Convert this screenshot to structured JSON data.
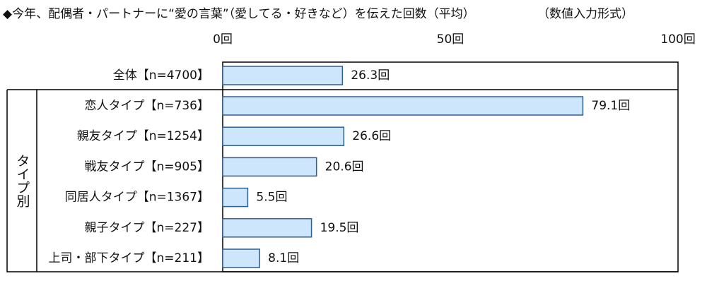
{
  "chart_data": {
    "type": "bar",
    "orientation": "horizontal",
    "title": "◆今年、配偶者・パートナーに“愛の言葉”（愛してる・好きなど）を伝えた回数（平均）",
    "subtitle": "（数値入力形式）",
    "group_label": "タイプ別",
    "categories": [
      "全体【n=4700】",
      "恋人タイプ【n=736】",
      "親友タイプ【n=1254】",
      "戦友タイプ【n=905】",
      "同居人タイプ【n=1367】",
      "親子タイプ【n=227】",
      "上司・部下タイプ【n=211】"
    ],
    "values": [
      26.3,
      79.1,
      26.6,
      20.6,
      5.5,
      19.5,
      8.1
    ],
    "value_labels": [
      "26.3回",
      "79.1回",
      "26.6回",
      "20.6回",
      "5.5回",
      "19.5回",
      "8.1回"
    ],
    "color": "#cde6fb",
    "edge_color": "#2f5f8f",
    "xlim": [
      0,
      100
    ],
    "xticks": [
      {
        "value": 0,
        "label": "0回"
      },
      {
        "value": 50,
        "label": "50回"
      },
      {
        "value": 100,
        "label": "100回"
      }
    ]
  }
}
